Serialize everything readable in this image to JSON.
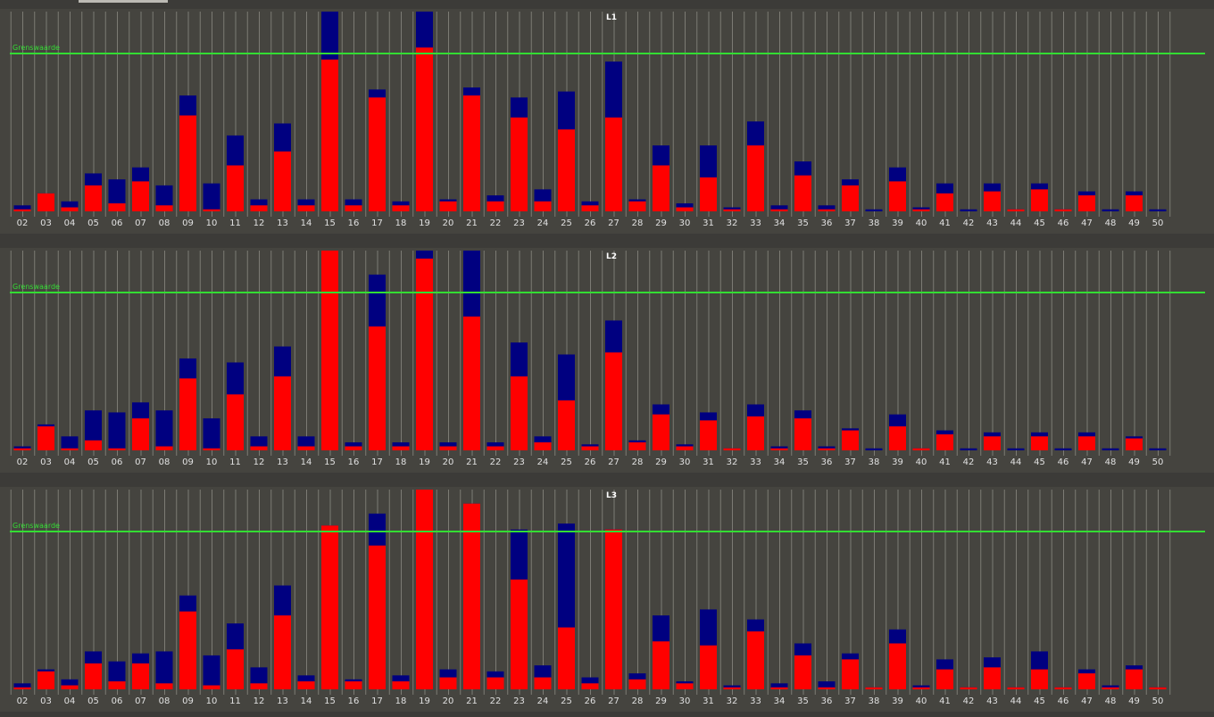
{
  "colors": {
    "red": "#ff0000",
    "blue": "#000080",
    "grid": "#7c7b74",
    "threshold": "#33dd33",
    "overflow": "#6a2a7a"
  },
  "chart_data": [
    {
      "type": "bar",
      "title": "L1",
      "threshold_label": "Grenswaarde",
      "threshold": 79,
      "ylim": [
        0,
        100
      ],
      "categories": [
        "02",
        "03",
        "04",
        "05",
        "06",
        "07",
        "08",
        "09",
        "10",
        "11",
        "12",
        "13",
        "14",
        "15",
        "16",
        "17",
        "18",
        "19",
        "20",
        "21",
        "22",
        "23",
        "24",
        "25",
        "26",
        "27",
        "28",
        "29",
        "30",
        "31",
        "32",
        "33",
        "34",
        "35",
        "36",
        "37",
        "38",
        "39",
        "40",
        "41",
        "42",
        "43",
        "44",
        "45",
        "46",
        "47",
        "48",
        "49",
        "50"
      ],
      "series": [
        {
          "name": "red",
          "values": [
            1,
            9,
            2,
            13,
            4,
            15,
            3,
            48,
            1,
            23,
            3,
            30,
            3,
            76,
            3,
            57,
            3,
            82,
            5,
            58,
            5,
            47,
            5,
            41,
            3,
            47,
            5,
            23,
            2,
            17,
            1,
            33,
            1,
            18,
            1,
            13,
            0,
            15,
            1,
            9,
            0,
            10,
            1,
            11,
            1,
            8,
            0,
            8,
            0
          ]
        },
        {
          "name": "blue",
          "values": [
            3,
            9,
            5,
            19,
            16,
            22,
            13,
            58,
            14,
            38,
            6,
            44,
            6,
            100,
            6,
            61,
            5,
            100,
            6,
            62,
            8,
            57,
            11,
            60,
            5,
            75,
            6,
            33,
            4,
            33,
            2,
            45,
            3,
            25,
            3,
            16,
            1,
            22,
            2,
            14,
            1,
            14,
            1,
            14,
            1,
            10,
            1,
            10,
            1
          ]
        }
      ]
    },
    {
      "type": "bar",
      "title": "L2",
      "threshold_label": "Grenswaarde",
      "threshold": 79,
      "ylim": [
        0,
        100
      ],
      "categories": [
        "02",
        "03",
        "04",
        "05",
        "06",
        "07",
        "08",
        "09",
        "10",
        "11",
        "12",
        "13",
        "14",
        "15",
        "16",
        "17",
        "18",
        "19",
        "20",
        "21",
        "22",
        "23",
        "24",
        "25",
        "26",
        "27",
        "28",
        "29",
        "30",
        "31",
        "32",
        "33",
        "34",
        "35",
        "36",
        "37",
        "38",
        "39",
        "40",
        "41",
        "42",
        "43",
        "44",
        "45",
        "46",
        "47",
        "48",
        "49",
        "50"
      ],
      "series": [
        {
          "name": "red",
          "values": [
            1,
            12,
            1,
            5,
            1,
            16,
            2,
            36,
            1,
            28,
            2,
            37,
            2,
            100,
            2,
            62,
            2,
            96,
            2,
            67,
            2,
            37,
            4,
            25,
            2,
            49,
            4,
            18,
            2,
            15,
            1,
            17,
            1,
            16,
            1,
            10,
            0,
            12,
            1,
            8,
            0,
            7,
            0,
            7,
            0,
            7,
            0,
            6,
            0
          ]
        },
        {
          "name": "blue",
          "values": [
            2,
            13,
            7,
            20,
            19,
            24,
            20,
            46,
            16,
            44,
            7,
            52,
            7,
            100,
            4,
            88,
            4,
            100,
            4,
            100,
            4,
            54,
            7,
            48,
            3,
            65,
            5,
            23,
            3,
            19,
            1,
            23,
            2,
            20,
            2,
            11,
            1,
            18,
            1,
            10,
            1,
            9,
            1,
            9,
            1,
            9,
            1,
            7,
            1
          ]
        }
      ]
    },
    {
      "type": "bar",
      "title": "L3",
      "threshold_label": "Grenswaarde",
      "threshold": 79,
      "ylim": [
        0,
        100
      ],
      "categories": [
        "02",
        "03",
        "04",
        "05",
        "06",
        "07",
        "08",
        "09",
        "10",
        "11",
        "12",
        "13",
        "14",
        "15",
        "16",
        "17",
        "18",
        "19",
        "20",
        "21",
        "22",
        "23",
        "24",
        "25",
        "26",
        "27",
        "28",
        "29",
        "30",
        "31",
        "32",
        "33",
        "34",
        "35",
        "36",
        "37",
        "38",
        "39",
        "40",
        "41",
        "42",
        "43",
        "44",
        "45",
        "46",
        "47",
        "48",
        "49",
        "50"
      ],
      "series": [
        {
          "name": "red",
          "values": [
            1,
            9,
            2,
            13,
            4,
            13,
            3,
            39,
            2,
            20,
            3,
            37,
            4,
            82,
            4,
            72,
            4,
            100,
            6,
            93,
            6,
            55,
            6,
            31,
            3,
            80,
            5,
            24,
            3,
            22,
            1,
            29,
            1,
            17,
            1,
            15,
            1,
            23,
            1,
            10,
            1,
            11,
            1,
            10,
            1,
            8,
            1,
            10,
            1
          ]
        },
        {
          "name": "blue",
          "values": [
            3,
            10,
            5,
            19,
            14,
            18,
            19,
            47,
            17,
            33,
            11,
            52,
            7,
            82,
            5,
            88,
            7,
            100,
            10,
            93,
            9,
            80,
            12,
            83,
            6,
            80,
            8,
            37,
            4,
            40,
            2,
            35,
            3,
            23,
            4,
            18,
            1,
            30,
            2,
            15,
            1,
            16,
            1,
            19,
            1,
            10,
            2,
            12,
            1
          ]
        }
      ]
    }
  ]
}
